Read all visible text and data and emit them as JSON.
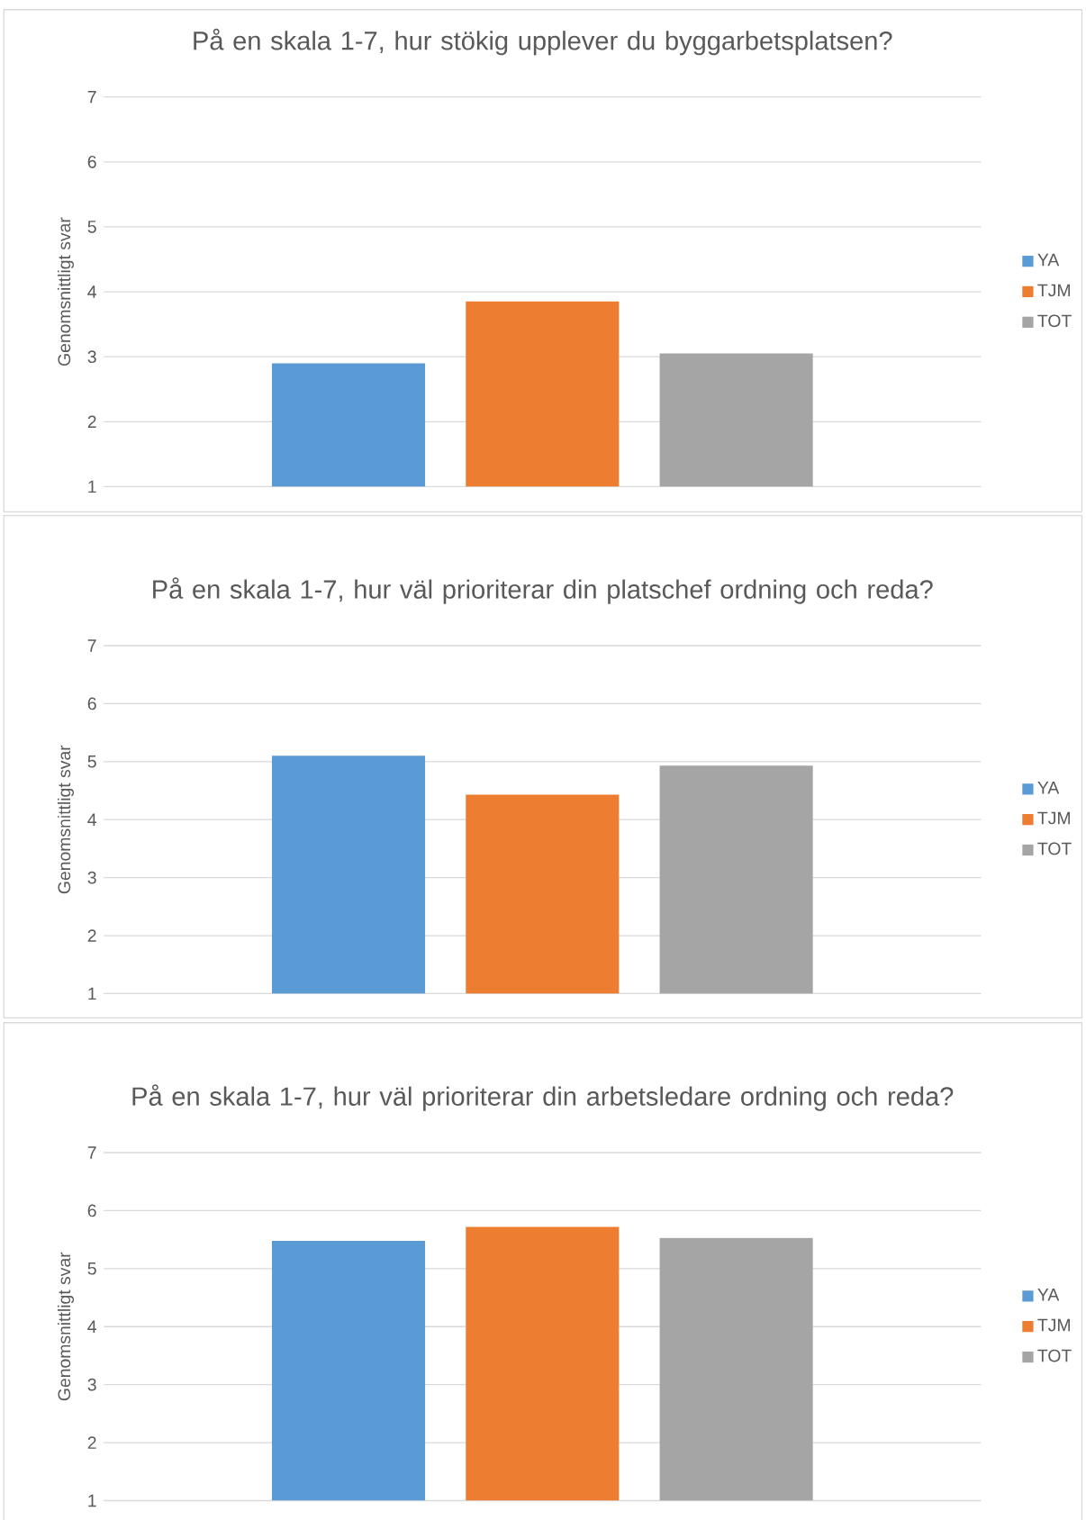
{
  "chart_data": [
    {
      "type": "bar",
      "title": "På en skala 1-7, hur stökig upplever du byggarbetsplatsen?",
      "ylabel": "Genomsnittligt svar",
      "categories": [
        null
      ],
      "series": [
        {
          "name": "YA",
          "color": "#5b9bd5",
          "values": [
            2.9
          ]
        },
        {
          "name": "TJM",
          "color": "#ed7d31",
          "values": [
            3.85
          ]
        },
        {
          "name": "TOT",
          "color": "#a5a5a5",
          "values": [
            3.05
          ]
        }
      ],
      "ylim": [
        1,
        7
      ],
      "yticks": [
        1,
        2,
        3,
        4,
        5,
        6,
        7
      ],
      "grid": "y",
      "legend": "right"
    },
    {
      "type": "bar",
      "title": "På en skala 1-7, hur väl prioriterar din platschef ordning och reda?",
      "ylabel": "Genomsnittligt svar",
      "categories": [
        null
      ],
      "series": [
        {
          "name": "YA",
          "color": "#5b9bd5",
          "values": [
            5.1
          ]
        },
        {
          "name": "TJM",
          "color": "#ed7d31",
          "values": [
            4.43
          ]
        },
        {
          "name": "TOT",
          "color": "#a5a5a5",
          "values": [
            4.93
          ]
        }
      ],
      "ylim": [
        1,
        7
      ],
      "yticks": [
        1,
        2,
        3,
        4,
        5,
        6,
        7
      ],
      "grid": "y",
      "legend": "right"
    },
    {
      "type": "bar",
      "title": "På en skala 1-7, hur väl prioriterar din arbetsledare ordning och reda?",
      "ylabel": "Genomsnittligt svar",
      "categories": [
        null
      ],
      "series": [
        {
          "name": "YA",
          "color": "#5b9bd5",
          "values": [
            5.48
          ]
        },
        {
          "name": "TJM",
          "color": "#ed7d31",
          "values": [
            5.72
          ]
        },
        {
          "name": "TOT",
          "color": "#a5a5a5",
          "values": [
            5.53
          ]
        }
      ],
      "ylim": [
        1,
        7
      ],
      "yticks": [
        1,
        2,
        3,
        4,
        5,
        6,
        7
      ],
      "grid": "y",
      "legend": "right"
    }
  ]
}
